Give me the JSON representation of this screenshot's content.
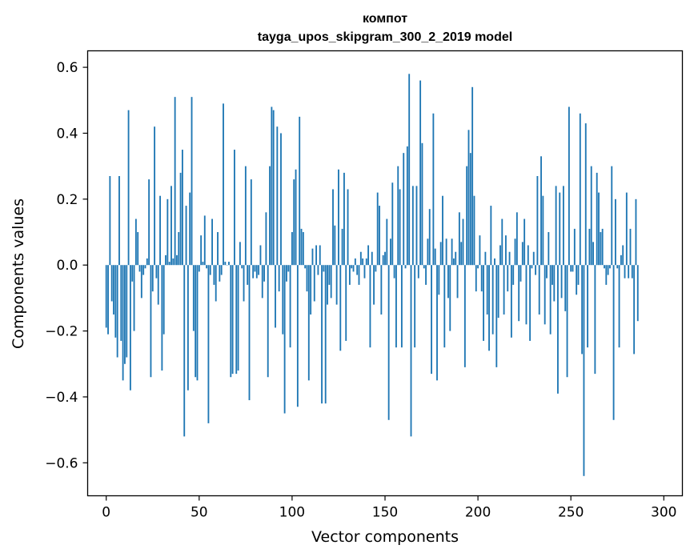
{
  "chart_data": {
    "type": "bar",
    "title_line1": "компот",
    "title_line2": "tayga_upos_skipgram_300_2_2019 model",
    "xlabel": "Vector components",
    "ylabel": "Components values",
    "xlim": [
      -10,
      310
    ],
    "ylim": [
      -0.7,
      0.65
    ],
    "xticks": [
      0,
      50,
      100,
      150,
      200,
      250,
      300
    ],
    "xtick_labels": [
      "0",
      "50",
      "100",
      "150",
      "200",
      "250",
      "300"
    ],
    "yticks": [
      0.6,
      0.4,
      0.2,
      0.0,
      -0.2,
      -0.4,
      -0.6
    ],
    "ytick_labels": [
      "0.6",
      "0.4",
      "0.2",
      "0.0",
      "−0.2",
      "−0.4",
      "−0.6"
    ],
    "bar_color": "#1f77b4",
    "values": [
      -0.19,
      -0.21,
      0.27,
      -0.11,
      -0.15,
      -0.22,
      -0.28,
      0.27,
      -0.23,
      -0.35,
      -0.3,
      -0.28,
      0.47,
      -0.38,
      -0.05,
      -0.2,
      0.14,
      0.1,
      -0.02,
      -0.1,
      -0.03,
      -0.01,
      0.02,
      0.26,
      -0.34,
      -0.08,
      0.42,
      -0.04,
      -0.12,
      0.21,
      -0.32,
      -0.21,
      0.03,
      0.2,
      0.01,
      0.24,
      0.02,
      0.51,
      0.03,
      0.1,
      0.28,
      0.35,
      -0.52,
      0.18,
      -0.38,
      0.22,
      0.51,
      -0.2,
      -0.34,
      -0.35,
      -0.02,
      0.09,
      0.01,
      0.15,
      -0.01,
      -0.48,
      -0.03,
      0.14,
      -0.06,
      -0.11,
      0.1,
      -0.05,
      -0.03,
      0.49,
      0.01,
      0.0,
      0.01,
      -0.34,
      -0.33,
      0.35,
      -0.33,
      -0.32,
      0.07,
      -0.01,
      -0.11,
      0.3,
      -0.06,
      -0.41,
      0.26,
      -0.04,
      -0.02,
      -0.04,
      -0.03,
      0.06,
      -0.1,
      -0.05,
      0.16,
      -0.34,
      0.3,
      0.48,
      0.47,
      -0.19,
      0.42,
      -0.08,
      0.4,
      -0.21,
      -0.45,
      -0.05,
      -0.02,
      -0.25,
      0.1,
      0.26,
      0.29,
      -0.43,
      0.45,
      0.11,
      0.1,
      -0.01,
      -0.08,
      -0.35,
      -0.15,
      0.05,
      -0.11,
      0.06,
      -0.03,
      0.06,
      -0.42,
      -0.02,
      -0.42,
      -0.12,
      -0.06,
      -0.1,
      0.23,
      0.12,
      -0.12,
      0.29,
      -0.26,
      0.11,
      0.28,
      -0.23,
      0.23,
      -0.06,
      -0.01,
      -0.02,
      0.02,
      -0.03,
      -0.06,
      0.04,
      0.02,
      -0.04,
      0.02,
      0.06,
      -0.25,
      0.04,
      -0.12,
      -0.02,
      0.22,
      0.18,
      -0.15,
      0.03,
      0.04,
      0.14,
      -0.47,
      0.08,
      0.25,
      -0.04,
      -0.25,
      0.3,
      0.23,
      -0.25,
      0.34,
      -0.01,
      0.36,
      0.58,
      -0.52,
      0.24,
      -0.25,
      0.24,
      -0.04,
      0.56,
      0.37,
      -0.01,
      -0.06,
      0.08,
      0.17,
      -0.33,
      0.46,
      0.05,
      -0.35,
      -0.09,
      0.07,
      0.21,
      -0.25,
      0.08,
      -0.1,
      -0.2,
      0.08,
      0.02,
      0.04,
      -0.1,
      0.16,
      0.07,
      0.14,
      -0.31,
      0.3,
      0.41,
      0.34,
      0.54,
      0.21,
      -0.08,
      -0.01,
      0.09,
      -0.08,
      -0.23,
      0.04,
      -0.15,
      -0.26,
      0.18,
      -0.21,
      0.02,
      -0.31,
      -0.16,
      0.06,
      0.14,
      -0.15,
      0.09,
      -0.08,
      0.04,
      -0.22,
      -0.06,
      0.08,
      0.16,
      -0.17,
      -0.05,
      0.07,
      0.14,
      -0.18,
      0.06,
      -0.23,
      -0.01,
      0.04,
      -0.03,
      0.27,
      -0.15,
      0.33,
      0.21,
      -0.18,
      -0.04,
      0.1,
      -0.21,
      -0.06,
      -0.11,
      0.24,
      -0.39,
      0.22,
      -0.1,
      0.24,
      -0.14,
      -0.34,
      0.48,
      -0.02,
      -0.02,
      0.11,
      -0.09,
      -0.06,
      0.46,
      -0.27,
      -0.64,
      0.43,
      -0.25,
      0.11,
      0.3,
      0.07,
      -0.33,
      0.28,
      0.22,
      0.1,
      0.11,
      -0.01,
      -0.06,
      -0.03,
      -0.01,
      0.3,
      -0.47,
      0.2,
      -0.01,
      -0.25,
      0.03,
      0.06,
      -0.04,
      0.22,
      -0.04,
      0.11,
      -0.04,
      -0.27,
      0.2,
      -0.17
    ]
  }
}
